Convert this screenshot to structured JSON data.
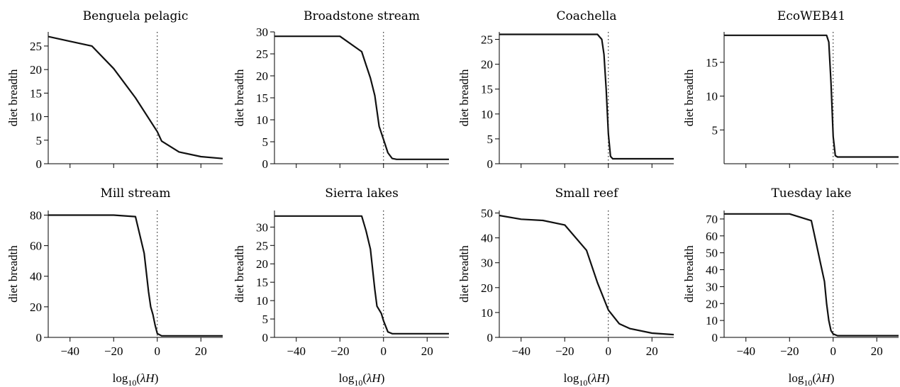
{
  "chart_data": [
    {
      "type": "line",
      "title": "Benguela pelagic",
      "ylabel": "diet breadth",
      "xlabel": "",
      "xlim": [
        -50,
        30
      ],
      "ylim": [
        0,
        28
      ],
      "xticks": [
        -40,
        -20,
        0,
        20
      ],
      "yticks": [
        0,
        5,
        10,
        15,
        20,
        25
      ],
      "show_xtick_labels": false,
      "x": [
        -50,
        -40,
        -30,
        -20,
        -10,
        0,
        2,
        10,
        20,
        30
      ],
      "y": [
        27.0,
        26.0,
        25.0,
        20.2,
        14.0,
        6.8,
        4.8,
        2.5,
        1.5,
        1.1
      ]
    },
    {
      "type": "line",
      "title": "Broadstone stream",
      "ylabel": "diet breadth",
      "xlabel": "",
      "xlim": [
        -50,
        30
      ],
      "ylim": [
        0,
        30
      ],
      "xticks": [
        -40,
        -20,
        0,
        20
      ],
      "yticks": [
        0,
        5,
        10,
        15,
        20,
        25,
        30
      ],
      "show_xtick_labels": false,
      "x": [
        -50,
        -20,
        -10,
        -8,
        -6,
        -4,
        -2,
        0,
        2,
        4,
        6,
        10,
        20,
        30
      ],
      "y": [
        29,
        29,
        25.5,
        22.5,
        19.5,
        15.5,
        8.5,
        5.5,
        2.5,
        1.2,
        1.0,
        1.0,
        1.0,
        1.0
      ]
    },
    {
      "type": "line",
      "title": "Coachella",
      "ylabel": "diet breadth",
      "xlabel": "",
      "xlim": [
        -50,
        30
      ],
      "ylim": [
        0,
        26.5
      ],
      "xticks": [
        -40,
        -20,
        0,
        20
      ],
      "yticks": [
        0,
        5,
        10,
        15,
        20,
        25
      ],
      "show_xtick_labels": false,
      "x": [
        -50,
        -5,
        -3,
        -2,
        -1,
        0,
        1,
        2,
        5,
        20,
        30
      ],
      "y": [
        26,
        26,
        25,
        22,
        15,
        6,
        1.5,
        1,
        1,
        1,
        1
      ]
    },
    {
      "type": "line",
      "title": "EcoWEB41",
      "ylabel": "diet breadth",
      "xlabel": "",
      "xlim": [
        -50,
        30
      ],
      "ylim": [
        0,
        19.5
      ],
      "xticks": [
        -40,
        -20,
        0,
        20
      ],
      "yticks": [
        5,
        10,
        15
      ],
      "show_xtick_labels": false,
      "x": [
        -50,
        -3,
        -2,
        -1,
        0,
        1,
        2,
        5,
        20,
        30
      ],
      "y": [
        19,
        19,
        18,
        12,
        4,
        1.2,
        1,
        1,
        1,
        1
      ]
    },
    {
      "type": "line",
      "title": "Mill stream",
      "ylabel": "diet breadth",
      "xlabel": "log10(λH)",
      "xlim": [
        -50,
        30
      ],
      "ylim": [
        0,
        83
      ],
      "xticks": [
        -40,
        -20,
        0,
        20
      ],
      "xtick_labels": [
        "−40",
        "−20",
        "0",
        "20"
      ],
      "yticks": [
        0,
        20,
        40,
        60,
        80
      ],
      "show_xtick_labels": true,
      "x": [
        -50,
        -20,
        -10,
        -6,
        -4,
        -3,
        -2,
        -1,
        0,
        2,
        5,
        20,
        30
      ],
      "y": [
        80,
        80,
        79,
        55,
        30,
        20,
        15,
        8,
        2.5,
        1,
        1,
        1,
        1
      ]
    },
    {
      "type": "line",
      "title": "Sierra lakes",
      "ylabel": "diet breadth",
      "xlabel": "log10(λH)",
      "xlim": [
        -50,
        30
      ],
      "ylim": [
        0,
        34.5
      ],
      "xticks": [
        -40,
        -20,
        0,
        20
      ],
      "xtick_labels": [
        "−40",
        "−20",
        "0",
        "20"
      ],
      "yticks": [
        0,
        5,
        10,
        15,
        20,
        25,
        30
      ],
      "show_xtick_labels": true,
      "x": [
        -50,
        -10,
        -8,
        -6,
        -4,
        -3,
        -2,
        -1,
        0,
        2,
        4,
        10,
        20,
        30
      ],
      "y": [
        33,
        33,
        29,
        24,
        13,
        8.5,
        7.5,
        6.5,
        4.5,
        1.5,
        1,
        1,
        1,
        1
      ]
    },
    {
      "type": "line",
      "title": "Small reef",
      "ylabel": "diet breadth",
      "xlabel": "log10(λH)",
      "xlim": [
        -50,
        30
      ],
      "ylim": [
        0,
        51
      ],
      "xticks": [
        -40,
        -20,
        0,
        20
      ],
      "xtick_labels": [
        "−40",
        "−20",
        "0",
        "20"
      ],
      "yticks": [
        0,
        10,
        20,
        30,
        40,
        50
      ],
      "show_xtick_labels": true,
      "x": [
        -50,
        -40,
        -30,
        -20,
        -10,
        -5,
        0,
        5,
        10,
        20,
        30
      ],
      "y": [
        49,
        47.5,
        47,
        45.2,
        35,
        22,
        11,
        5.5,
        3.5,
        1.7,
        1.1
      ]
    },
    {
      "type": "line",
      "title": "Tuesday lake",
      "ylabel": "diet breadth",
      "xlabel": "log10(λH)",
      "xlim": [
        -50,
        30
      ],
      "ylim": [
        0,
        75
      ],
      "xticks": [
        -40,
        -20,
        0,
        20
      ],
      "xtick_labels": [
        "−40",
        "−20",
        "0",
        "20"
      ],
      "yticks": [
        0,
        10,
        20,
        30,
        40,
        50,
        60,
        70
      ],
      "show_xtick_labels": true,
      "x": [
        -50,
        -20,
        -10,
        -8,
        -6,
        -4,
        -3,
        -2,
        -1,
        0,
        2,
        5,
        20,
        30
      ],
      "y": [
        73,
        73,
        69,
        57,
        45,
        33,
        20,
        10,
        4,
        2,
        1,
        1,
        1,
        1
      ]
    }
  ]
}
